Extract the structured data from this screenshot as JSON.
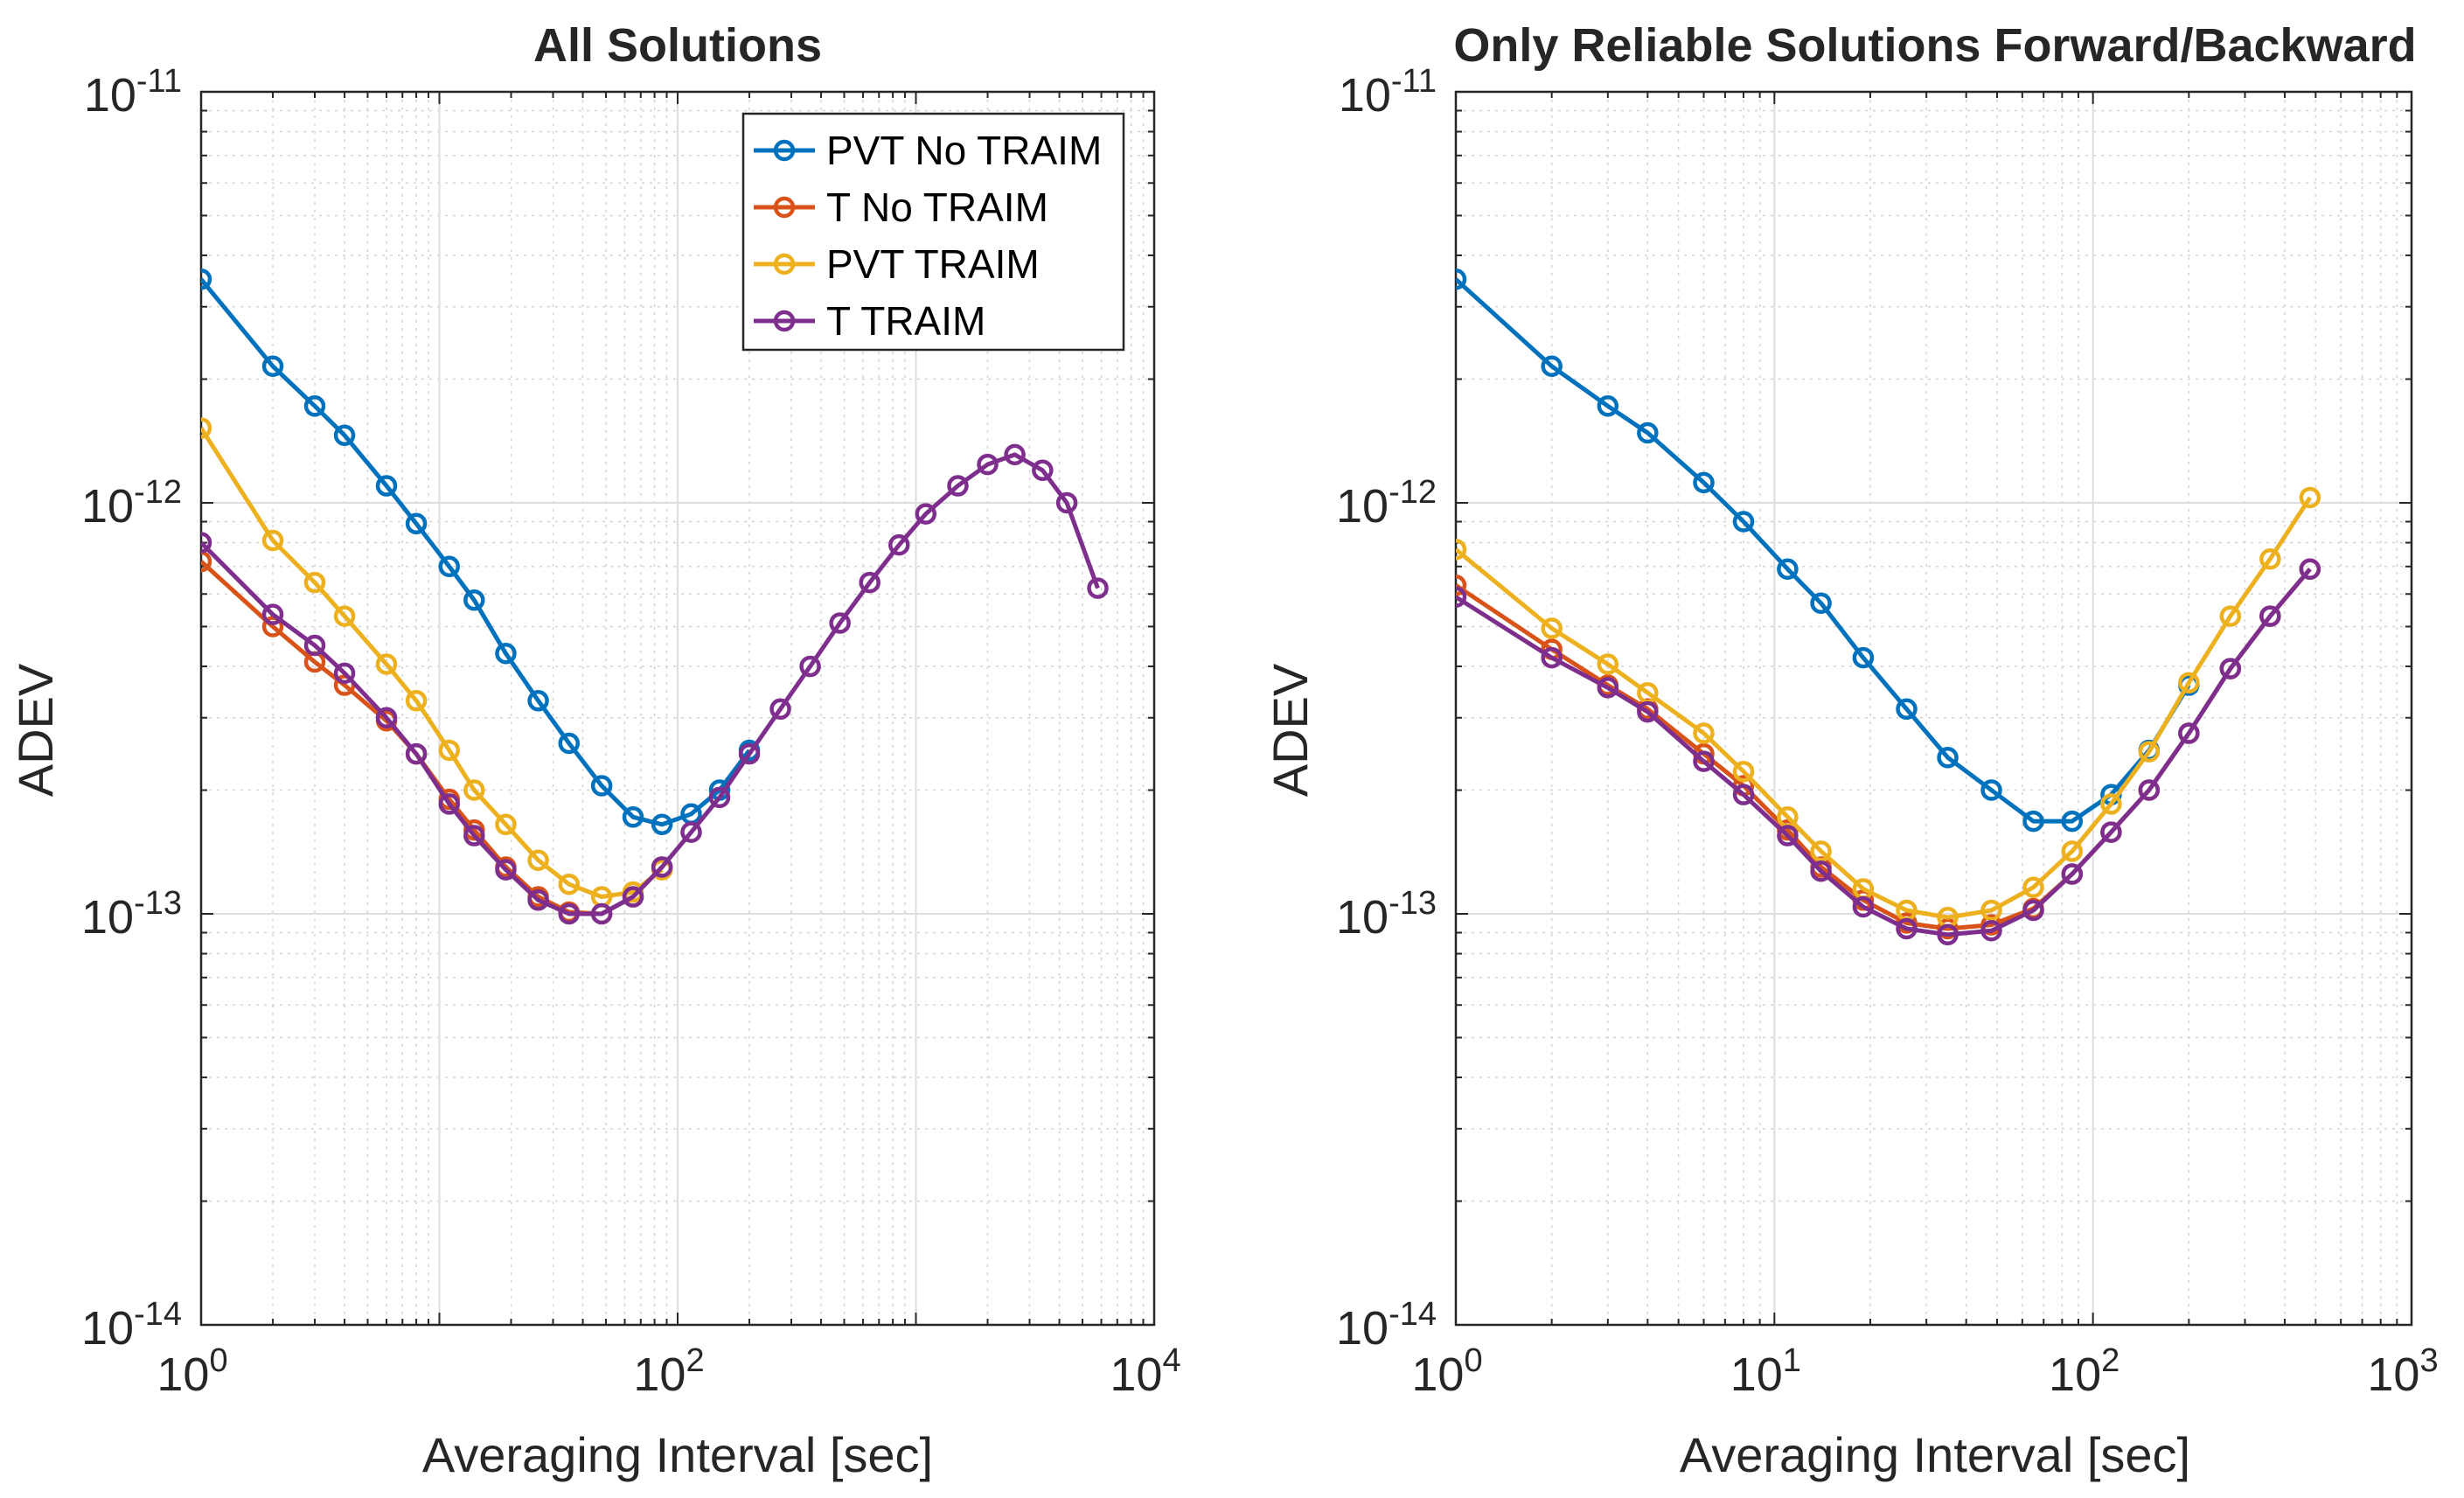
{
  "chart_data": [
    {
      "type": "line",
      "title": "All Solutions",
      "xlabel": "Averaging Interval [sec]",
      "ylabel": "ADEV",
      "xscale": "log",
      "yscale": "log",
      "xlim": [
        1,
        10000
      ],
      "ylim": [
        1e-14,
        1e-11
      ],
      "grid": true,
      "legend": "top-right",
      "xticks": [
        {
          "value": 1,
          "base": "10",
          "exp": "0"
        },
        {
          "value": 100,
          "base": "10",
          "exp": "2"
        },
        {
          "value": 10000,
          "base": "10",
          "exp": "4"
        }
      ],
      "yticks": [
        {
          "value": 1e-14,
          "base": "10",
          "exp": "-14"
        },
        {
          "value": 1e-13,
          "base": "10",
          "exp": "-13"
        },
        {
          "value": 1e-12,
          "base": "10",
          "exp": "-12"
        },
        {
          "value": 1e-11,
          "base": "10",
          "exp": "-11"
        }
      ],
      "series": [
        {
          "name": "PVT No TRAIM",
          "color": "#0072BD",
          "x": [
            1,
            2,
            3,
            4,
            6,
            8,
            11,
            14,
            19,
            26,
            35,
            48,
            65,
            86,
            114,
            150,
            200
          ],
          "values": [
            3.5e-12,
            2.15e-12,
            1.72e-12,
            1.46e-12,
            1.1e-12,
            8.9e-13,
            7e-13,
            5.8e-13,
            4.3e-13,
            3.3e-13,
            2.6e-13,
            2.05e-13,
            1.72e-13,
            1.65e-13,
            1.75e-13,
            2e-13,
            2.5e-13
          ]
        },
        {
          "name": "T No TRAIM",
          "color": "#D95319",
          "x": [
            1,
            2,
            3,
            4,
            6,
            8,
            11,
            14,
            19,
            26,
            35,
            48,
            65,
            86
          ],
          "values": [
            7.2e-13,
            5e-13,
            4.1e-13,
            3.6e-13,
            2.95e-13,
            2.45e-13,
            1.9e-13,
            1.6e-13,
            1.3e-13,
            1.1e-13,
            1.01e-13,
            1e-13,
            1.1e-13,
            1.3e-13
          ]
        },
        {
          "name": "PVT TRAIM",
          "color": "#EDB120",
          "x": [
            1,
            2,
            3,
            4,
            6,
            8,
            11,
            14,
            19,
            26,
            35,
            48,
            65,
            86
          ],
          "values": [
            1.52e-12,
            8.1e-13,
            6.4e-13,
            5.3e-13,
            4.05e-13,
            3.3e-13,
            2.5e-13,
            2e-13,
            1.65e-13,
            1.35e-13,
            1.18e-13,
            1.1e-13,
            1.13e-13,
            1.28e-13
          ]
        },
        {
          "name": "T TRAIM",
          "color": "#7E2F8E",
          "x": [
            1,
            2,
            3,
            4,
            6,
            8,
            11,
            14,
            19,
            26,
            35,
            48,
            65,
            86,
            114,
            150,
            200,
            270,
            360,
            480,
            640,
            850,
            1100,
            1500,
            2000,
            2600,
            3400,
            4300,
            5800
          ],
          "values": [
            8e-13,
            5.35e-13,
            4.5e-13,
            3.85e-13,
            3e-13,
            2.45e-13,
            1.85e-13,
            1.55e-13,
            1.28e-13,
            1.08e-13,
            1e-13,
            1e-13,
            1.1e-13,
            1.3e-13,
            1.58e-13,
            1.92e-13,
            2.45e-13,
            3.15e-13,
            4e-13,
            5.1e-13,
            6.4e-13,
            7.9e-13,
            9.4e-13,
            1.1e-12,
            1.24e-12,
            1.31e-12,
            1.2e-12,
            1e-12,
            6.2e-13
          ]
        }
      ]
    },
    {
      "type": "line",
      "title": "Only Reliable Solutions Forward/Backward",
      "xlabel": "Averaging Interval [sec]",
      "ylabel": "ADEV",
      "xscale": "log",
      "yscale": "log",
      "xlim": [
        1,
        1000
      ],
      "ylim": [
        1e-14,
        1e-11
      ],
      "grid": true,
      "legend": "none",
      "xticks": [
        {
          "value": 1,
          "base": "10",
          "exp": "0"
        },
        {
          "value": 10,
          "base": "10",
          "exp": "1"
        },
        {
          "value": 100,
          "base": "10",
          "exp": "2"
        },
        {
          "value": 1000,
          "base": "10",
          "exp": "3"
        }
      ],
      "yticks": [
        {
          "value": 1e-14,
          "base": "10",
          "exp": "-14"
        },
        {
          "value": 1e-13,
          "base": "10",
          "exp": "-13"
        },
        {
          "value": 1e-12,
          "base": "10",
          "exp": "-12"
        },
        {
          "value": 1e-11,
          "base": "10",
          "exp": "-11"
        }
      ],
      "series": [
        {
          "name": "PVT No TRAIM",
          "color": "#0072BD",
          "x": [
            1,
            2,
            3,
            4,
            6,
            8,
            11,
            14,
            19,
            26,
            35,
            48,
            65,
            86,
            114,
            150,
            200
          ],
          "values": [
            3.5e-12,
            2.15e-12,
            1.72e-12,
            1.48e-12,
            1.12e-12,
            9e-13,
            6.9e-13,
            5.7e-13,
            4.2e-13,
            3.15e-13,
            2.4e-13,
            2e-13,
            1.68e-13,
            1.68e-13,
            1.95e-13,
            2.5e-13,
            3.6e-13
          ]
        },
        {
          "name": "T No TRAIM",
          "color": "#D95319",
          "x": [
            1,
            2,
            3,
            4,
            6,
            8,
            11,
            14,
            19,
            26,
            35,
            48,
            65,
            86,
            114,
            150,
            200,
            270,
            360,
            480
          ],
          "values": [
            6.3e-13,
            4.4e-13,
            3.6e-13,
            3.15e-13,
            2.45e-13,
            2.05e-13,
            1.6e-13,
            1.3e-13,
            1.08e-13,
            9.5e-14,
            9.2e-14,
            9.4e-14,
            1.03e-13,
            1.25e-13,
            1.58e-13,
            2e-13,
            2.75e-13,
            3.95e-13,
            5.3e-13,
            6.9e-13
          ]
        },
        {
          "name": "PVT TRAIM",
          "color": "#EDB120",
          "x": [
            1,
            2,
            3,
            4,
            6,
            8,
            11,
            14,
            19,
            26,
            35,
            48,
            65,
            86,
            114,
            150,
            200,
            270,
            360,
            480
          ],
          "values": [
            7.7e-13,
            4.95e-13,
            4.05e-13,
            3.45e-13,
            2.75e-13,
            2.22e-13,
            1.72e-13,
            1.42e-13,
            1.15e-13,
            1.02e-13,
            9.8e-14,
            1.02e-13,
            1.16e-13,
            1.42e-13,
            1.85e-13,
            2.48e-13,
            3.65e-13,
            5.3e-13,
            7.3e-13,
            1.03e-12
          ]
        },
        {
          "name": "T TRAIM",
          "color": "#7E2F8E",
          "x": [
            1,
            2,
            3,
            4,
            6,
            8,
            11,
            14,
            19,
            26,
            35,
            48,
            65,
            86,
            114,
            150,
            200,
            270,
            360,
            480
          ],
          "values": [
            5.9e-13,
            4.2e-13,
            3.55e-13,
            3.1e-13,
            2.35e-13,
            1.95e-13,
            1.55e-13,
            1.27e-13,
            1.04e-13,
            9.2e-14,
            8.9e-14,
            9.1e-14,
            1.02e-13,
            1.25e-13,
            1.58e-13,
            2e-13,
            2.75e-13,
            3.95e-13,
            5.3e-13,
            6.9e-13
          ]
        }
      ]
    }
  ]
}
